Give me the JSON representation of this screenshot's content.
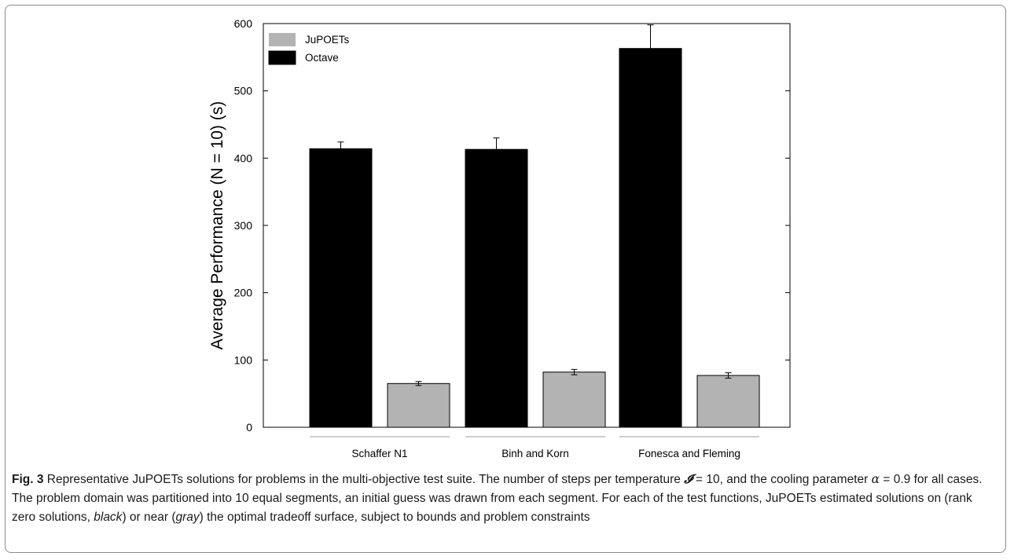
{
  "chart_data": {
    "type": "bar",
    "categories": [
      "Schaffer N1",
      "Binh and Korn",
      "Fonesca and Fleming"
    ],
    "series": [
      {
        "name": "Octave",
        "color": "#000000",
        "values": [
          414,
          413,
          563
        ],
        "error": [
          10,
          17,
          35
        ]
      },
      {
        "name": "JuPOETs",
        "color": "#b3b3b3",
        "values": [
          65,
          82,
          77
        ],
        "error": [
          3,
          4,
          4
        ]
      }
    ],
    "ylabel": "Average Performance (N = 10) (s)",
    "xlabel": "",
    "ylim": [
      0,
      600
    ],
    "yticks": [
      0,
      100,
      200,
      300,
      400,
      500,
      600
    ],
    "legend_position": "top-left",
    "grid": false
  },
  "caption": {
    "label": "Fig. 3",
    "parts": [
      " Representative JuPOETs solutions for problems in the multi-objective test suite. The number of steps per temperature ",
      "𝓘",
      " = 10, and the cooling parameter ",
      "α",
      " = 0.9 for all cases. The problem domain was partitioned into 10 equal segments, an initial guess was drawn from each segment. For each of the test functions, JuPOETs estimated solutions on (rank zero solutions, ",
      "black",
      ") or near (",
      "gray",
      ") the optimal tradeoff surface, subject to bounds and problem constraints"
    ]
  }
}
